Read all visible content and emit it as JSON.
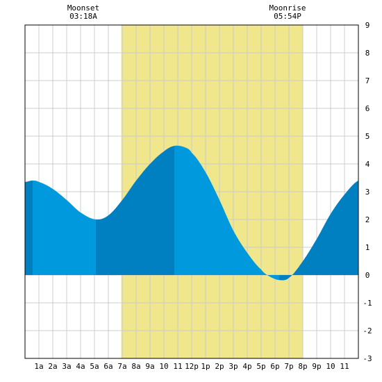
{
  "chart_data": {
    "type": "area",
    "title": "",
    "xlabel": "",
    "ylabel": "",
    "xlim": [
      0,
      24
    ],
    "ylim": [
      -3,
      9
    ],
    "y_ticks": [
      "-3",
      "-2",
      "-1",
      "0",
      "1",
      "2",
      "3",
      "4",
      "5",
      "6",
      "7",
      "8",
      "9"
    ],
    "x_ticks": [
      {
        "x": 1,
        "label": "1a"
      },
      {
        "x": 2,
        "label": "2a"
      },
      {
        "x": 3,
        "label": "3a"
      },
      {
        "x": 4,
        "label": "4a"
      },
      {
        "x": 5,
        "label": "5a"
      },
      {
        "x": 6,
        "label": "6a"
      },
      {
        "x": 7,
        "label": "7a"
      },
      {
        "x": 8,
        "label": "8a"
      },
      {
        "x": 9,
        "label": "9a"
      },
      {
        "x": 10,
        "label": "10"
      },
      {
        "x": 11,
        "label": "11"
      },
      {
        "x": 12,
        "label": "12p"
      },
      {
        "x": 13,
        "label": "1p"
      },
      {
        "x": 14,
        "label": "2p"
      },
      {
        "x": 15,
        "label": "3p"
      },
      {
        "x": 16,
        "label": "4p"
      },
      {
        "x": 17,
        "label": "5p"
      },
      {
        "x": 18,
        "label": "6p"
      },
      {
        "x": 19,
        "label": "7p"
      },
      {
        "x": 20,
        "label": "8p"
      },
      {
        "x": 21,
        "label": "9p"
      },
      {
        "x": 22,
        "label": "10"
      },
      {
        "x": 23,
        "label": "11"
      }
    ],
    "grid": true,
    "daylight": {
      "start": 6.93,
      "end": 19.98,
      "color": "#f0e68c"
    },
    "annotations": [
      {
        "x": 4.2,
        "line1": "Moonset",
        "line2": "03:18A"
      },
      {
        "x": 18.9,
        "line1": "Moonrise",
        "line2": "05:54P"
      }
    ],
    "tide_extremes": [
      {
        "x": 0.55,
        "y": 3.4
      },
      {
        "x": 5.1,
        "y": 2.0
      },
      {
        "x": 10.75,
        "y": 4.65
      },
      {
        "x": 18.3,
        "y": -0.18
      }
    ],
    "series": [
      {
        "x": [
          0,
          0.55,
          1,
          2,
          3,
          4,
          5.1,
          6,
          7,
          8,
          9,
          10,
          10.75,
          11.5,
          12,
          13,
          14,
          15,
          16,
          17,
          17.6,
          18.3,
          19,
          20,
          21,
          22,
          23,
          24
        ],
        "y": [
          3.35,
          3.4,
          3.35,
          3.1,
          2.7,
          2.25,
          2.0,
          2.15,
          2.7,
          3.4,
          4.0,
          4.45,
          4.65,
          4.6,
          4.4,
          3.7,
          2.7,
          1.6,
          0.8,
          0.2,
          -0.05,
          -0.18,
          -0.1,
          0.5,
          1.3,
          2.2,
          2.9,
          3.4
        ]
      }
    ],
    "bands": [
      {
        "from": 0,
        "to": 0.55,
        "color": "#0080c0"
      },
      {
        "from": 0.55,
        "to": 5.1,
        "color": "#0099dd"
      },
      {
        "from": 5.1,
        "to": 10.75,
        "color": "#0080c0"
      },
      {
        "from": 10.75,
        "to": 18.3,
        "color": "#0099dd"
      },
      {
        "from": 18.3,
        "to": 24,
        "color": "#0080c0"
      }
    ],
    "colors": {
      "grid": "#cccccc",
      "frame": "#000000",
      "background": "#ffffff"
    }
  }
}
